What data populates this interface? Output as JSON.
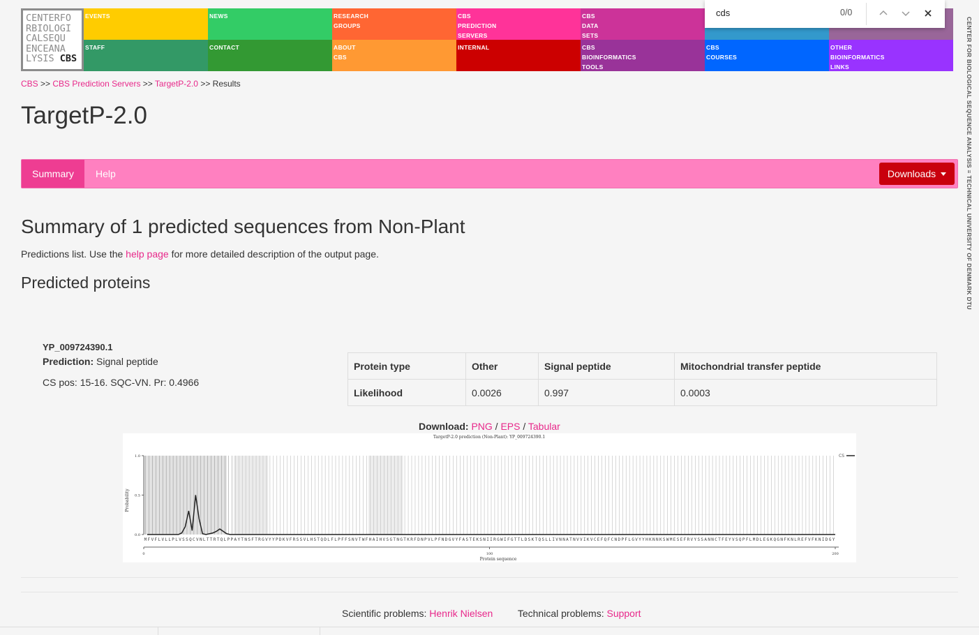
{
  "header": {
    "logo": {
      "lines": [
        "CENTERFO",
        "RBIOLOGI",
        "CALSEQU",
        "ENCEANA",
        "LYSIS "
      ],
      "brand": "CBS"
    },
    "tiles": [
      {
        "label": "Events",
        "color": "#ffcc00"
      },
      {
        "label": "News",
        "color": "#33cc66"
      },
      {
        "label": "Research\nGroups",
        "color": "#ff6633"
      },
      {
        "label": "CBS\nPrediction\nServers",
        "color": "#ff3399"
      },
      {
        "label": "CBS\nData\nSets",
        "color": "#cc3399"
      },
      {
        "label": "",
        "color": "#3399cc"
      },
      {
        "label": "",
        "color": "#996699"
      },
      {
        "label": "Staff",
        "color": "#339966"
      },
      {
        "label": "Contact",
        "color": "#339933"
      },
      {
        "label": "About\nCBS",
        "color": "#ff9933"
      },
      {
        "label": "Internal",
        "color": "#cc0000"
      },
      {
        "label": "CBS\nBioinformatics\nTools",
        "color": "#993399"
      },
      {
        "label": "CBS\nCourses",
        "color": "#0066ff"
      },
      {
        "label": "Other\nBioinformatics\nLinks",
        "color": "#9933ff"
      }
    ],
    "vertical_banner": "CENTER FOR BIOLOGICAL SEQUENCE ANALYSIS ≡ TECHNICAL UNIVERSITY OF DENMARK DTU"
  },
  "findbar": {
    "query": "cds",
    "count": "0/0"
  },
  "breadcrumb": {
    "items": [
      "CBS",
      "CBS Prediction Servers",
      "TargetP-2.0"
    ],
    "current": "Results",
    "separator": ">>"
  },
  "page_title": "TargetP-2.0",
  "nav": {
    "tabs": [
      "Summary",
      "Help"
    ],
    "downloads_label": "Downloads"
  },
  "summary": {
    "heading": "Summary of 1 predicted sequences from Non-Plant",
    "intro_before": "Predictions list. Use the ",
    "intro_link": "help page",
    "intro_after": " for more detailed description of the output page.",
    "predicted_heading": "Predicted proteins"
  },
  "protein": {
    "id": "YP_009724390.1",
    "prediction_label": "Prediction:",
    "prediction_value": "Signal peptide",
    "cs_pos": "CS pos: 15-16. SQC-VN. Pr: 0.4966"
  },
  "table": {
    "headers": [
      "Protein type",
      "Other",
      "Signal peptide",
      "Mitochondrial transfer peptide"
    ],
    "row_label": "Likelihood",
    "values": [
      "0.0026",
      "0.997",
      "0.0003"
    ]
  },
  "download": {
    "label": "Download:",
    "links": [
      "PNG",
      "EPS",
      "Tabular"
    ],
    "separator": "/"
  },
  "chart_data": {
    "type": "line",
    "title": "TargetP-2.0 prediction (Non-Plant): YP_009724390.1",
    "xlabel": "Protein sequence",
    "ylabel": "Probability",
    "xlim": [
      0,
      200
    ],
    "ylim": [
      0,
      1.0
    ],
    "x_ticks": [
      "0",
      "100",
      "200"
    ],
    "y_ticks": [
      "0.0",
      "0.5",
      "1.0"
    ],
    "legend": "top-right",
    "sequence": "MFVFLVLLPLVSSQCVNLTTRTQLPPAYTNSFTRGVYYPDKVFRSSVLHSTQDLFLPFFSNVTWFHAIHVSGTNGTKRFDNPVLPFNDGVYFASTEKSNIIRGWIFGTTLDSKTQSLLIVNNATNVVIKVCEFQFCNDPFLGVYYHKNNKSWMESEFRVYSSANNCTFEYVSQPFLMDLEGKQGNFKNLREFVFKNIDGY",
    "series": [
      {
        "name": "CS",
        "x": [
          1,
          5,
          10,
          11,
          12,
          13,
          14,
          15,
          16,
          17,
          18,
          20,
          21,
          22,
          23,
          24,
          25,
          30,
          40,
          200
        ],
        "values": [
          0.0,
          0.0,
          0.0,
          0.02,
          0.1,
          0.3,
          0.05,
          0.5,
          0.2,
          0.01,
          0.0,
          0.02,
          0.04,
          0.07,
          0.04,
          0.01,
          0.0,
          0.0,
          0.0,
          0.0
        ]
      }
    ]
  },
  "footer": {
    "scientific_label": "Scientific problems:",
    "scientific_link": "Henrik Nielsen",
    "technical_label": "Technical problems:",
    "technical_link": "Support"
  }
}
